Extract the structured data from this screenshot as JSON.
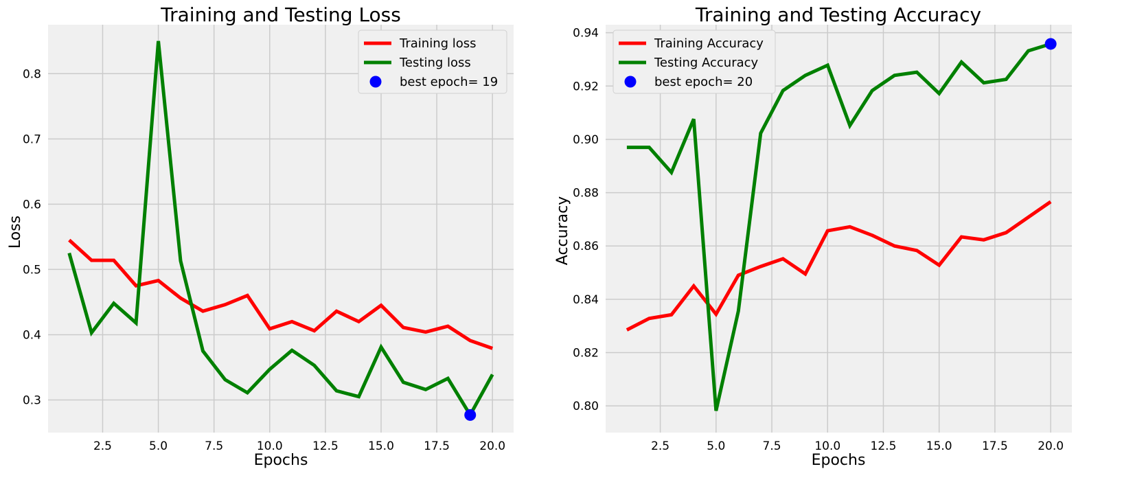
{
  "colors": {
    "background": "#ffffff",
    "plot_background": "#f0f0f0",
    "grid": "#cbcbcb",
    "train": "#ff0000",
    "test": "#008000",
    "best": "#0000ff"
  },
  "chart_data": [
    {
      "type": "line",
      "title": "Training and Testing Loss",
      "xlabel": "Epochs",
      "ylabel": "Loss",
      "grid": true,
      "legend_placement": "top-right",
      "xlim": [
        0.05,
        20.95
      ],
      "ylim": [
        0.25,
        0.875
      ],
      "xticks": [
        2.5,
        5.0,
        7.5,
        10.0,
        12.5,
        15.0,
        17.5,
        20.0
      ],
      "xtick_labels": [
        "2.5",
        "5.0",
        "7.5",
        "10.0",
        "12.5",
        "15.0",
        "17.5",
        "20.0"
      ],
      "yticks": [
        0.3,
        0.4,
        0.5,
        0.6,
        0.7,
        0.8
      ],
      "ytick_labels": [
        "0.3",
        "0.4",
        "0.5",
        "0.6",
        "0.7",
        "0.8"
      ],
      "x": [
        1,
        2,
        3,
        4,
        5,
        6,
        7,
        8,
        9,
        10,
        11,
        12,
        13,
        14,
        15,
        16,
        17,
        18,
        19,
        20
      ],
      "series": [
        {
          "name": "Training loss",
          "color": "#ff0000",
          "values": [
            0.545,
            0.514,
            0.514,
            0.475,
            0.483,
            0.456,
            0.436,
            0.446,
            0.46,
            0.409,
            0.42,
            0.406,
            0.436,
            0.42,
            0.445,
            0.411,
            0.404,
            0.413,
            0.391,
            0.379
          ]
        },
        {
          "name": "Testing loss",
          "color": "#008000",
          "values": [
            0.525,
            0.403,
            0.448,
            0.418,
            0.85,
            0.513,
            0.375,
            0.331,
            0.311,
            0.347,
            0.376,
            0.353,
            0.314,
            0.305,
            0.381,
            0.327,
            0.316,
            0.333,
            0.277,
            0.339
          ]
        }
      ],
      "highlight": {
        "name": "best epoch= 19",
        "x": 19,
        "y": 0.277,
        "color": "#0000ff"
      }
    },
    {
      "type": "line",
      "title": "Training and Testing Accuracy",
      "xlabel": "Epochs",
      "ylabel": "Accuracy",
      "grid": true,
      "legend_placement": "top-left",
      "xlim": [
        0.05,
        20.95
      ],
      "ylim": [
        0.79,
        0.943
      ],
      "xticks": [
        2.5,
        5.0,
        7.5,
        10.0,
        12.5,
        15.0,
        17.5,
        20.0
      ],
      "xtick_labels": [
        "2.5",
        "5.0",
        "7.5",
        "10.0",
        "12.5",
        "15.0",
        "17.5",
        "20.0"
      ],
      "yticks": [
        0.8,
        0.82,
        0.84,
        0.86,
        0.88,
        0.9,
        0.92,
        0.94
      ],
      "ytick_labels": [
        "0.80",
        "0.82",
        "0.84",
        "0.86",
        "0.88",
        "0.90",
        "0.92",
        "0.94"
      ],
      "x": [
        1,
        2,
        3,
        4,
        5,
        6,
        7,
        8,
        9,
        10,
        11,
        12,
        13,
        14,
        15,
        16,
        17,
        18,
        19,
        20
      ],
      "series": [
        {
          "name": "Training Accuracy",
          "color": "#ff0000",
          "values": [
            0.8285,
            0.8328,
            0.8342,
            0.845,
            0.8344,
            0.849,
            0.8523,
            0.8552,
            0.8495,
            0.8657,
            0.8672,
            0.864,
            0.86,
            0.8583,
            0.8528,
            0.8634,
            0.8623,
            0.865,
            0.8708,
            0.8766
          ]
        },
        {
          "name": "Testing Accuracy",
          "color": "#008000",
          "values": [
            0.897,
            0.897,
            0.8876,
            0.9076,
            0.7982,
            0.8356,
            0.9023,
            0.9183,
            0.924,
            0.9278,
            0.9052,
            0.9183,
            0.924,
            0.9252,
            0.9172,
            0.929,
            0.9212,
            0.9225,
            0.9332,
            0.9358
          ]
        }
      ],
      "highlight": {
        "name": "best epoch= 20",
        "x": 20,
        "y": 0.9358,
        "color": "#0000ff"
      }
    }
  ]
}
